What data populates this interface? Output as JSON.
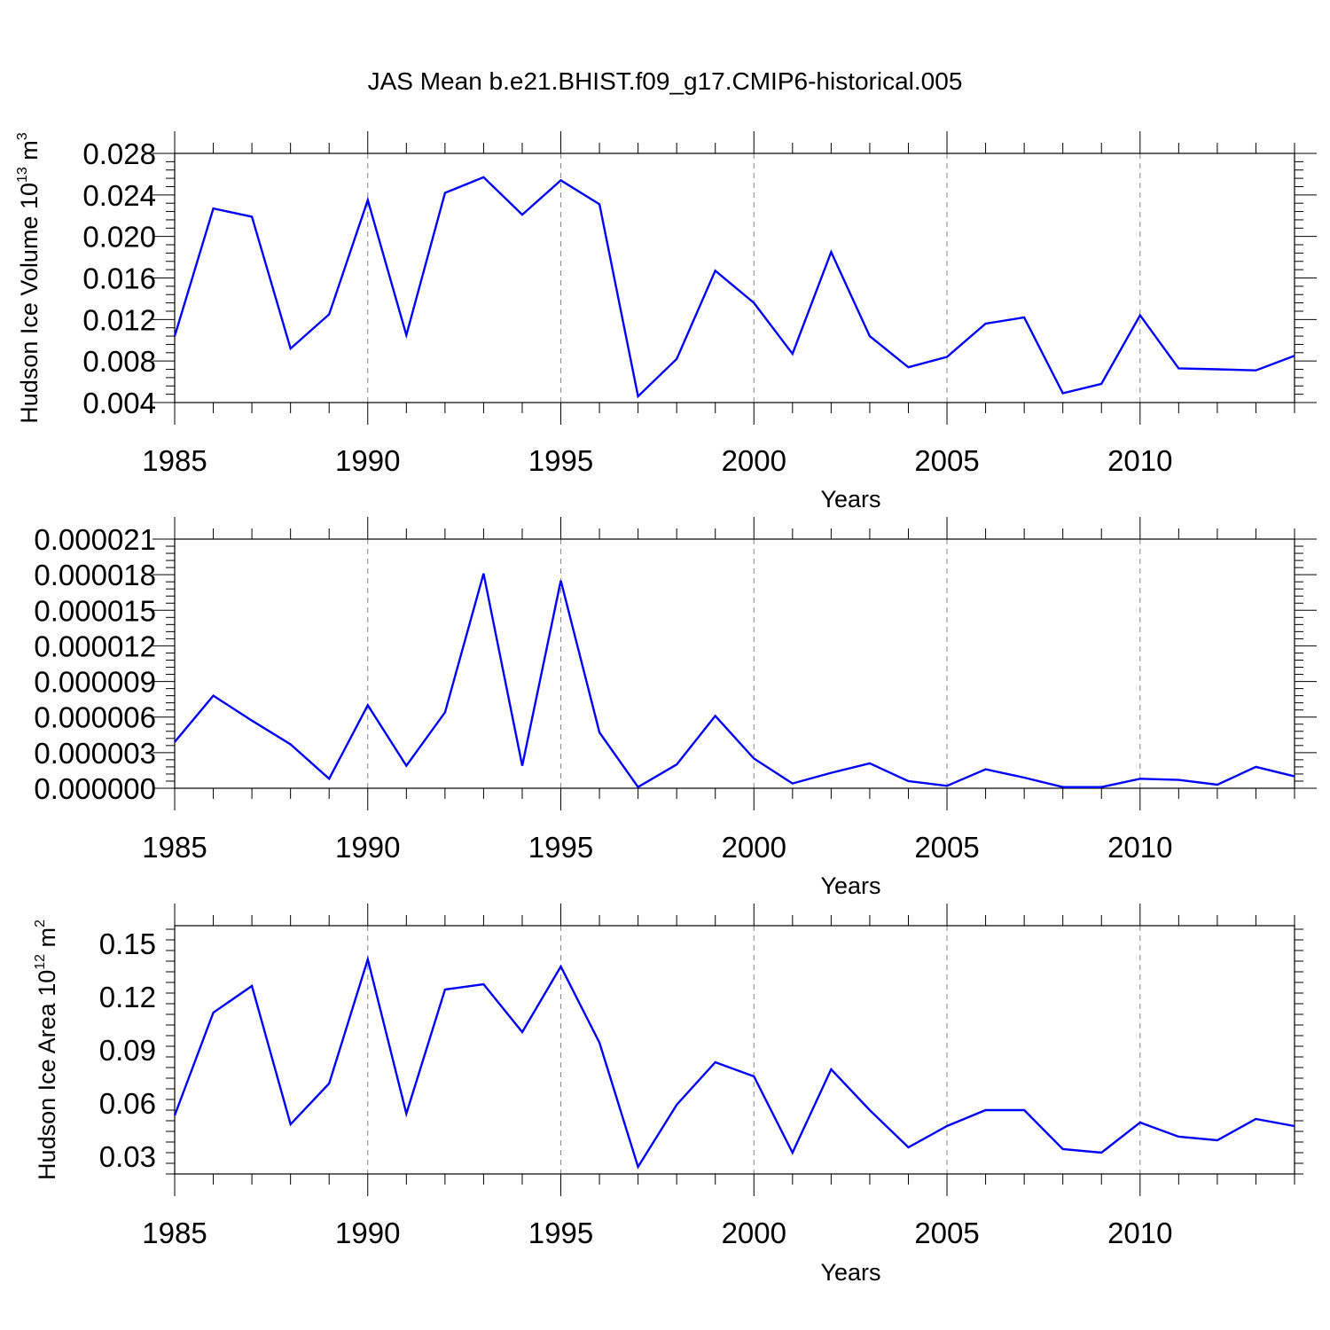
{
  "title": "JAS Mean b.e21.BHIST.f09_g17.CMIP6-historical.005",
  "colors": {
    "line": "#0000ff",
    "axis": "#000000",
    "grid": "#888888",
    "background": "#ffffff"
  },
  "chart_data": [
    {
      "type": "line",
      "name": "ice-volume",
      "ylabel": "Hudson Ice Volume 10",
      "ylabel_exp": "13",
      "ylabel_unit": " m",
      "ylabel_unit_exp": "3",
      "xlabel": "Years",
      "xlim": [
        1985,
        2014
      ],
      "ylim": [
        0.004,
        0.028
      ],
      "xticks": [
        1985,
        1990,
        1995,
        2000,
        2005,
        2010
      ],
      "xtick_labels": [
        "1985",
        "1990",
        "1995",
        "2000",
        "2005",
        "2010"
      ],
      "yticks": [
        0.004,
        0.008,
        0.012,
        0.016,
        0.02,
        0.024,
        0.028
      ],
      "ytick_labels": [
        "0.004",
        "0.008",
        "0.012",
        "0.016",
        "0.020",
        "0.024",
        "0.028"
      ],
      "grid": "vertical dashed at major x ticks",
      "x": [
        1985,
        1986,
        1987,
        1988,
        1989,
        1990,
        1991,
        1992,
        1993,
        1994,
        1995,
        1996,
        1997,
        1998,
        1999,
        2000,
        2001,
        2002,
        2003,
        2004,
        2005,
        2006,
        2007,
        2008,
        2009,
        2010,
        2011,
        2012,
        2013,
        2014
      ],
      "values": [
        0.0104,
        0.0227,
        0.0219,
        0.0092,
        0.0125,
        0.0235,
        0.0105,
        0.0242,
        0.0257,
        0.0221,
        0.0254,
        0.0231,
        0.0046,
        0.0082,
        0.0167,
        0.0136,
        0.0087,
        0.0185,
        0.0104,
        0.0074,
        0.0084,
        0.0116,
        0.0122,
        0.0049,
        0.0058,
        0.0124,
        0.0073,
        0.0072,
        0.0071,
        0.0085
      ]
    },
    {
      "type": "line",
      "name": "ice-thickness-unlabeled",
      "ylabel": "",
      "xlabel": "Years",
      "xlim": [
        1985,
        2014
      ],
      "ylim": [
        0.0,
        2.1e-05
      ],
      "xticks": [
        1985,
        1990,
        1995,
        2000,
        2005,
        2010
      ],
      "xtick_labels": [
        "1985",
        "1990",
        "1995",
        "2000",
        "2005",
        "2010"
      ],
      "yticks": [
        0.0,
        3e-06,
        6e-06,
        9e-06,
        1.2e-05,
        1.5e-05,
        1.8e-05,
        2.1e-05
      ],
      "ytick_labels": [
        "0.000000",
        "0.000003",
        "0.000006",
        "0.000009",
        "0.000012",
        "0.000015",
        "0.000018",
        "0.000021"
      ],
      "grid": "vertical dashed at major x ticks",
      "x": [
        1985,
        1986,
        1987,
        1988,
        1989,
        1990,
        1991,
        1992,
        1993,
        1994,
        1995,
        1996,
        1997,
        1998,
        1999,
        2000,
        2001,
        2002,
        2003,
        2004,
        2005,
        2006,
        2007,
        2008,
        2009,
        2010,
        2011,
        2012,
        2013,
        2014
      ],
      "values": [
        3.9e-06,
        7.8e-06,
        5.7e-06,
        3.7e-06,
        8e-07,
        7e-06,
        1.9e-06,
        6.4e-06,
        1.81e-05,
        1.9e-06,
        1.75e-05,
        4.7e-06,
        1e-07,
        2e-06,
        6.1e-06,
        2.5e-06,
        4e-07,
        1.3e-06,
        2.1e-06,
        6e-07,
        2e-07,
        1.6e-06,
        9e-07,
        1e-07,
        1e-07,
        8e-07,
        7e-07,
        3e-07,
        1.8e-06,
        1e-06
      ]
    },
    {
      "type": "line",
      "name": "ice-area",
      "ylabel": "Hudson Ice Area 10",
      "ylabel_exp": "12",
      "ylabel_unit": " m",
      "ylabel_unit_exp": "2",
      "xlabel": "Years",
      "xlim": [
        1985,
        2014
      ],
      "ylim": [
        0.02,
        0.16
      ],
      "xticks": [
        1985,
        1990,
        1995,
        2000,
        2005,
        2010
      ],
      "xtick_labels": [
        "1985",
        "1990",
        "1995",
        "2000",
        "2005",
        "2010"
      ],
      "yticks": [
        0.03,
        0.06,
        0.09,
        0.12,
        0.15
      ],
      "ytick_labels": [
        "0.03",
        "0.06",
        "0.09",
        "0.12",
        "0.15"
      ],
      "grid": "vertical dashed at major x ticks",
      "x": [
        1985,
        1986,
        1987,
        1988,
        1989,
        1990,
        1991,
        1992,
        1993,
        1994,
        1995,
        1996,
        1997,
        1998,
        1999,
        2000,
        2001,
        2002,
        2003,
        2004,
        2005,
        2006,
        2007,
        2008,
        2009,
        2010,
        2011,
        2012,
        2013,
        2014
      ],
      "values": [
        0.053,
        0.111,
        0.126,
        0.048,
        0.071,
        0.141,
        0.054,
        0.124,
        0.127,
        0.1,
        0.137,
        0.094,
        0.024,
        0.059,
        0.083,
        0.075,
        0.032,
        0.079,
        0.056,
        0.035,
        0.047,
        0.056,
        0.056,
        0.034,
        0.032,
        0.049,
        0.041,
        0.039,
        0.051,
        0.047
      ]
    }
  ]
}
